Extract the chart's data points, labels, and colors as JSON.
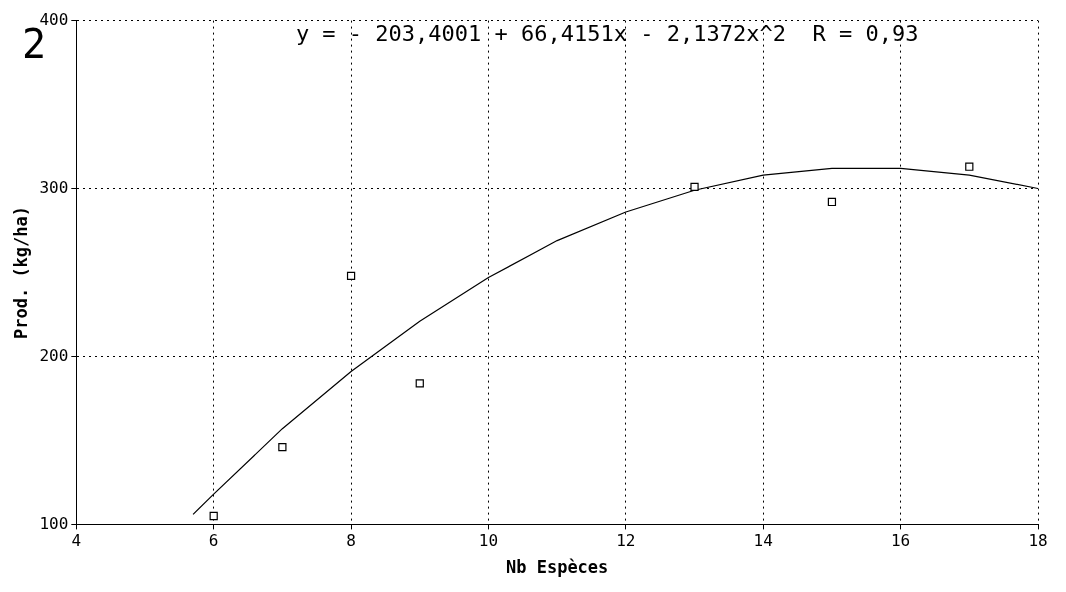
{
  "chart_data": {
    "type": "scatter",
    "xlabel": "Nb Espèces",
    "ylabel": "Prod. (kg/ha)",
    "annotations": [
      "y = - 203,4001 + 66,4151x - 2,1372x^2  R = 0,93",
      "2"
    ],
    "xlim": [
      4,
      18
    ],
    "xticks": [
      4,
      6,
      8,
      10,
      12,
      14,
      16,
      18
    ],
    "ylim": [
      100,
      400
    ],
    "yticks": [
      100,
      200,
      300,
      400
    ],
    "grid": true,
    "legend": false,
    "series": [
      {
        "type": "scatter",
        "color": "#000000",
        "marker": "square",
        "x": [
          6,
          7,
          8,
          9,
          13,
          15,
          17
        ],
        "values": [
          105,
          146,
          248,
          184,
          301,
          292,
          313
        ]
      },
      {
        "type": "line",
        "color": "#000000",
        "marker": "none",
        "line_style": "solid",
        "x": [
          5.7,
          6,
          7,
          8,
          9,
          10,
          11,
          12,
          13,
          14,
          15,
          16,
          17,
          18
        ],
        "values": [
          106,
          118,
          157,
          191,
          221,
          247,
          269,
          286,
          299,
          308,
          312,
          312,
          308,
          300
        ]
      }
    ]
  }
}
